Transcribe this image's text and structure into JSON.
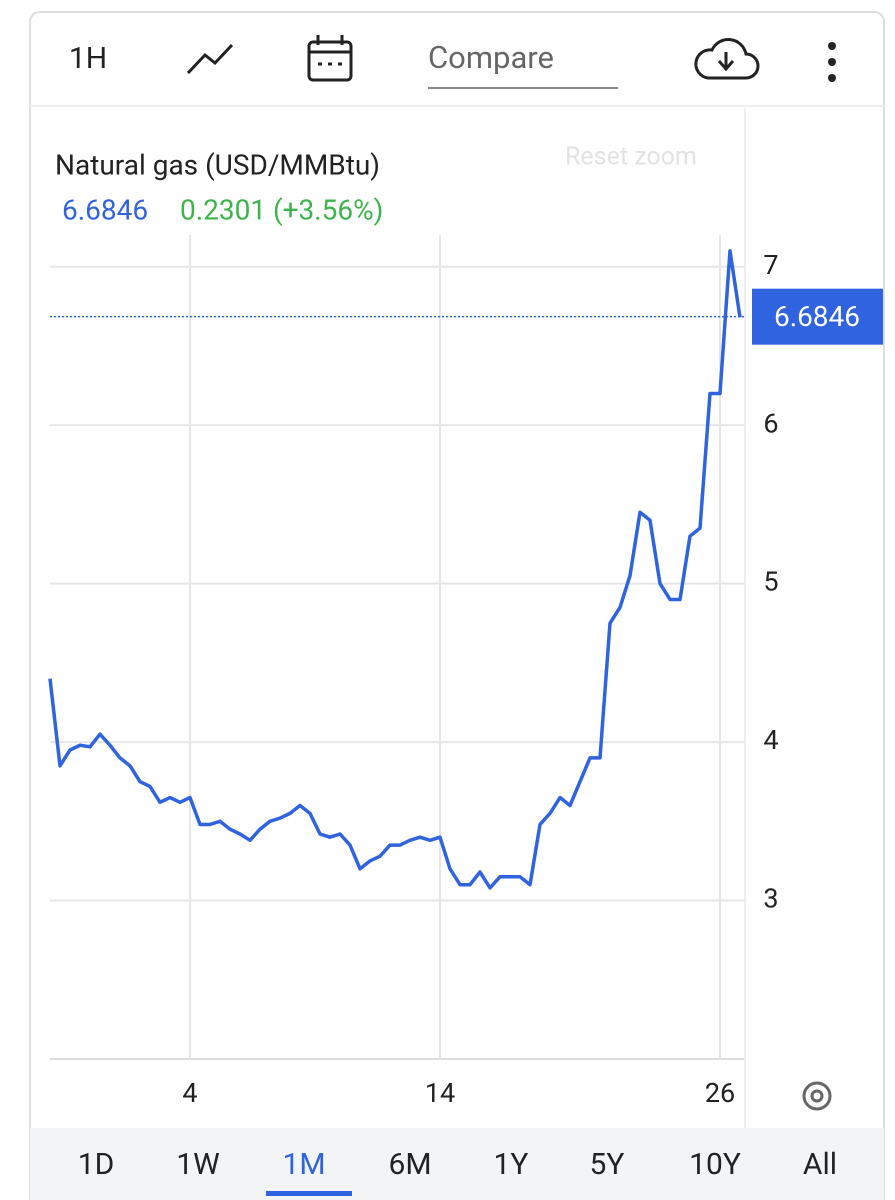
{
  "ui": {
    "interval": "1H",
    "compare": "Compare",
    "reset_zoom": "Reset zoom",
    "tabs": [
      "1D",
      "1W",
      "1M",
      "6M",
      "1Y",
      "5Y",
      "10Y",
      "All"
    ],
    "selected_tab": "1M"
  },
  "chart_data": {
    "type": "line",
    "title": "Natural gas (USD/MMBtu)",
    "last_price": 6.6846,
    "change": "0.2301 (+3.56%)",
    "color": "#2f63e0",
    "change_color": "#3cb44b",
    "categories": [
      null,
      null,
      null,
      null,
      null,
      null,
      null,
      null,
      null,
      null,
      null,
      null,
      null,
      null,
      "4",
      null,
      null,
      null,
      null,
      null,
      null,
      null,
      null,
      null,
      null,
      null,
      null,
      null,
      null,
      null,
      null,
      null,
      null,
      null,
      null,
      null,
      null,
      null,
      null,
      "14",
      null,
      null,
      null,
      null,
      null,
      null,
      null,
      null,
      null,
      null,
      null,
      null,
      null,
      null,
      null,
      null,
      null,
      null,
      null,
      null,
      null,
      null,
      null,
      null,
      null,
      null,
      null,
      "26",
      null,
      null
    ],
    "values": [
      4.4,
      3.85,
      3.95,
      3.98,
      3.97,
      4.05,
      3.98,
      3.9,
      3.85,
      3.75,
      3.72,
      3.62,
      3.65,
      3.62,
      3.65,
      3.48,
      3.48,
      3.5,
      3.45,
      3.42,
      3.38,
      3.45,
      3.5,
      3.52,
      3.55,
      3.6,
      3.55,
      3.42,
      3.4,
      3.42,
      3.35,
      3.2,
      3.25,
      3.28,
      3.35,
      3.35,
      3.38,
      3.4,
      3.38,
      3.4,
      3.2,
      3.1,
      3.1,
      3.18,
      3.08,
      3.15,
      3.15,
      3.15,
      3.1,
      3.48,
      3.55,
      3.65,
      3.6,
      3.75,
      3.9,
      3.9,
      4.75,
      4.85,
      5.05,
      5.45,
      5.4,
      5.0,
      4.9,
      4.9,
      5.3,
      5.35,
      6.2,
      6.2,
      7.1,
      6.68
    ],
    "ylim": [
      2,
      7.2
    ],
    "yticks": [
      3,
      4,
      5,
      6,
      7
    ],
    "grid": true
  }
}
